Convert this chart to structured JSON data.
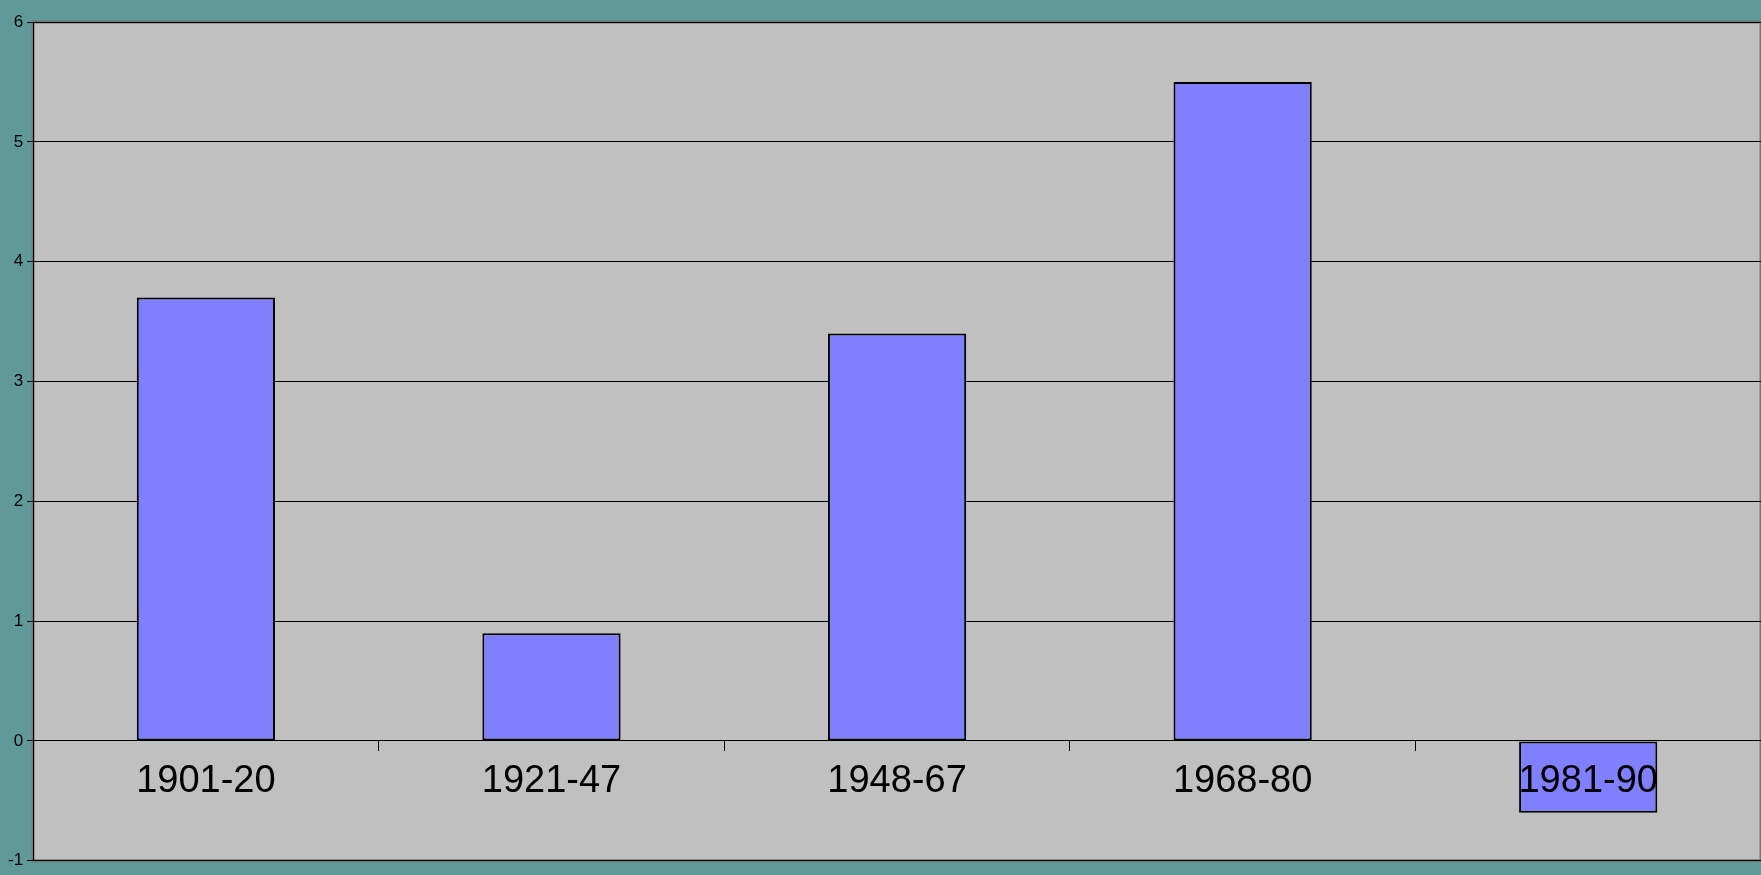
{
  "chart_data": {
    "type": "bar",
    "categories": [
      "1901-20",
      "1921-47",
      "1948-67",
      "1968-80",
      "1981-90"
    ],
    "values": [
      3.7,
      0.9,
      3.4,
      5.5,
      -0.6
    ],
    "color": "#8080ff",
    "ylim": [
      -1,
      6
    ],
    "yticks": [
      -1,
      0,
      1,
      2,
      3,
      4,
      5,
      6
    ],
    "grid": "y",
    "legend": false
  }
}
